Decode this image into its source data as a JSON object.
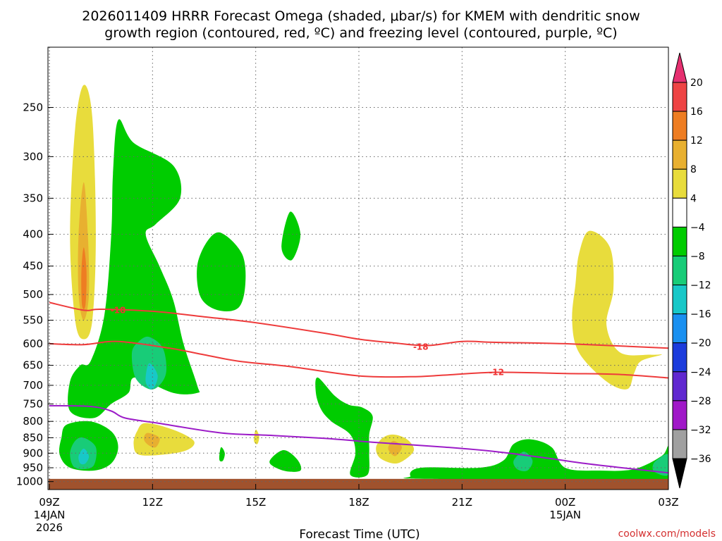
{
  "chart_data": {
    "type": "contour",
    "title_line1": "2026011409 HRRR Forecast Omega (shaded, μbar/s) for KMEM with dendritic snow",
    "title_line2": "growth region (contoured, red, ºC) and freezing level (contoured, purple, ºC)",
    "xlabel": "Forecast Time (UTC)",
    "credit": "coolwx.com/models",
    "x_hours": [
      0,
      3,
      6,
      9,
      12,
      15,
      18
    ],
    "x_tick_labels": [
      "09Z",
      "12Z",
      "15Z",
      "18Z",
      "21Z",
      "00Z",
      "03Z"
    ],
    "x_date_labels": [
      {
        "hour": 0,
        "line1": "14JAN",
        "line2": "2026"
      },
      {
        "hour": 15,
        "line1": "15JAN",
        "line2": ""
      }
    ],
    "ylim_hpa": [
      1030,
      200
    ],
    "y_ticks": [
      250,
      300,
      350,
      400,
      450,
      500,
      550,
      600,
      650,
      700,
      750,
      800,
      850,
      900,
      950,
      1000
    ],
    "y_tick_labels": [
      "250",
      "300",
      "350",
      "400",
      "450",
      "500",
      "550",
      "600",
      "650",
      "700",
      "750",
      "800",
      "850",
      "900",
      "950",
      "1000"
    ],
    "colorbar": {
      "levels": [
        20,
        16,
        12,
        8,
        4,
        -4,
        -8,
        -12,
        -16,
        -20,
        -24,
        -28,
        -32,
        -36
      ],
      "labels": [
        "20",
        "16",
        "12",
        "8",
        "4",
        "−4",
        "−8",
        "−12",
        "−16",
        "−20",
        "−24",
        "−28",
        "−32",
        "−36"
      ],
      "colors": [
        "#e63070",
        "#ee4444",
        "#ee7d22",
        "#e8b030",
        "#e8dc3c",
        "#ffffff",
        "#00cc00",
        "#18cc78",
        "#18c8c8",
        "#1a90f0",
        "#1c3cdc",
        "#6028d0",
        "#a018c8",
        "#a0a0a0",
        "#000000"
      ]
    },
    "shading": [
      {
        "color": "#e8dc3c",
        "level": "4 to 8",
        "points": [
          [
            1.0,
            230
          ],
          [
            1.25,
            260
          ],
          [
            1.35,
            400
          ],
          [
            1.25,
            550
          ],
          [
            1.0,
            590
          ],
          [
            0.75,
            550
          ],
          [
            0.6,
            400
          ],
          [
            0.75,
            270
          ]
        ]
      },
      {
        "color": "#e8b030",
        "level": "8 to 12",
        "points": [
          [
            1.0,
            330
          ],
          [
            1.12,
            400
          ],
          [
            1.15,
            500
          ],
          [
            1.0,
            550
          ],
          [
            0.85,
            500
          ],
          [
            0.85,
            400
          ]
        ]
      },
      {
        "color": "#ee7d22",
        "level": "12 to 16",
        "points": [
          [
            1.0,
            420
          ],
          [
            1.08,
            460
          ],
          [
            1.05,
            520
          ],
          [
            0.95,
            520
          ],
          [
            0.93,
            460
          ]
        ]
      },
      {
        "color": "#00cc00",
        "level": "-4 to -8",
        "points": [
          [
            2.0,
            262
          ],
          [
            2.45,
            285
          ],
          [
            3.6,
            310
          ],
          [
            3.8,
            350
          ],
          [
            3.1,
            385
          ],
          [
            2.8,
            400
          ],
          [
            3.2,
            450
          ],
          [
            3.6,
            510
          ],
          [
            3.9,
            600
          ],
          [
            4.3,
            700
          ],
          [
            4.3,
            720
          ],
          [
            3.6,
            720
          ],
          [
            2.5,
            680
          ],
          [
            2.3,
            720
          ],
          [
            1.8,
            750
          ],
          [
            1.3,
            790
          ],
          [
            0.6,
            770
          ],
          [
            0.6,
            690
          ],
          [
            0.9,
            650
          ],
          [
            1.2,
            640
          ],
          [
            1.6,
            540
          ],
          [
            1.8,
            400
          ],
          [
            1.85,
            320
          ]
        ]
      },
      {
        "color": "#00cc00",
        "level": "-4 to -8",
        "points": [
          [
            0.5,
            810
          ],
          [
            1.2,
            800
          ],
          [
            1.8,
            830
          ],
          [
            2.0,
            880
          ],
          [
            1.8,
            935
          ],
          [
            1.3,
            960
          ],
          [
            0.6,
            950
          ],
          [
            0.3,
            905
          ],
          [
            0.35,
            850
          ]
        ]
      },
      {
        "color": "#00cc00",
        "level": "-4 to -8",
        "points": [
          [
            5.0,
            398
          ],
          [
            5.6,
            430
          ],
          [
            5.7,
            480
          ],
          [
            5.5,
            525
          ],
          [
            4.9,
            530
          ],
          [
            4.4,
            505
          ],
          [
            4.3,
            450
          ],
          [
            4.6,
            410
          ]
        ]
      },
      {
        "color": "#00cc00",
        "level": "-4 to -8",
        "points": [
          [
            7.0,
            368
          ],
          [
            7.3,
            400
          ],
          [
            7.05,
            440
          ],
          [
            6.75,
            420
          ]
        ]
      },
      {
        "color": "#00cc00",
        "level": "-4 to -8",
        "points": [
          [
            7.8,
            680
          ],
          [
            8.3,
            728
          ],
          [
            8.7,
            752
          ],
          [
            9.1,
            760
          ],
          [
            9.4,
            785
          ],
          [
            9.3,
            840
          ],
          [
            9.3,
            900
          ],
          [
            9.25,
            975
          ],
          [
            8.75,
            975
          ],
          [
            8.9,
            900
          ],
          [
            8.75,
            840
          ],
          [
            8.2,
            800
          ],
          [
            7.9,
            765
          ],
          [
            7.75,
            720
          ]
        ]
      },
      {
        "color": "#00cc00",
        "level": "-4 to -8",
        "points": [
          [
            6.8,
            890
          ],
          [
            7.2,
            920
          ],
          [
            7.3,
            960
          ],
          [
            6.8,
            960
          ],
          [
            6.4,
            930
          ]
        ]
      },
      {
        "color": "#00cc00",
        "level": "-4 to -8",
        "points": [
          [
            5.0,
            880
          ],
          [
            5.1,
            900
          ],
          [
            5.05,
            925
          ],
          [
            4.95,
            925
          ],
          [
            4.95,
            900
          ]
        ]
      },
      {
        "color": "#00cc00",
        "level": "-4 to -8",
        "points": [
          [
            10.8,
            950
          ],
          [
            12.5,
            950
          ],
          [
            13.2,
            925
          ],
          [
            13.5,
            870
          ],
          [
            14.0,
            855
          ],
          [
            14.6,
            880
          ],
          [
            15.0,
            950
          ],
          [
            16.0,
            960
          ],
          [
            17.0,
            955
          ],
          [
            17.8,
            910
          ],
          [
            18.0,
            880
          ],
          [
            18.0,
            990
          ],
          [
            11.0,
            990
          ],
          [
            10.5,
            980
          ]
        ]
      },
      {
        "color": "#18cc78",
        "level": "-8 to -12",
        "points": [
          [
            2.9,
            585
          ],
          [
            3.3,
            610
          ],
          [
            3.4,
            665
          ],
          [
            3.2,
            700
          ],
          [
            2.9,
            710
          ],
          [
            2.5,
            680
          ],
          [
            2.4,
            620
          ],
          [
            2.6,
            595
          ]
        ]
      },
      {
        "color": "#18c8c8",
        "level": "-12 to -16",
        "points": [
          [
            2.9,
            645
          ],
          [
            3.15,
            675
          ],
          [
            3.0,
            710
          ],
          [
            2.8,
            690
          ]
        ]
      },
      {
        "color": "#18cc78",
        "level": "-8 to -12",
        "points": [
          [
            1.0,
            850
          ],
          [
            1.35,
            880
          ],
          [
            1.3,
            940
          ],
          [
            1.0,
            955
          ],
          [
            0.7,
            945
          ],
          [
            0.6,
            900
          ],
          [
            0.75,
            860
          ]
        ]
      },
      {
        "color": "#18c8c8",
        "level": "-12 to -16",
        "points": [
          [
            1.0,
            885
          ],
          [
            1.15,
            910
          ],
          [
            1.05,
            935
          ],
          [
            0.9,
            935
          ],
          [
            0.85,
            910
          ]
        ]
      },
      {
        "color": "#18cc78",
        "level": "-8 to -12",
        "points": [
          [
            13.8,
            895
          ],
          [
            14.05,
            925
          ],
          [
            13.9,
            960
          ],
          [
            13.6,
            955
          ],
          [
            13.5,
            925
          ]
        ]
      },
      {
        "color": "#18cc78",
        "level": "-8 to -12",
        "points": [
          [
            17.7,
            920
          ],
          [
            18.0,
            905
          ],
          [
            18.0,
            975
          ],
          [
            17.6,
            965
          ],
          [
            17.55,
            940
          ]
        ]
      },
      {
        "color": "#e8dc3c",
        "level": "4 to 8",
        "points": [
          [
            2.8,
            805
          ],
          [
            3.6,
            825
          ],
          [
            4.2,
            860
          ],
          [
            4.0,
            890
          ],
          [
            3.3,
            905
          ],
          [
            2.6,
            905
          ],
          [
            2.45,
            870
          ],
          [
            2.55,
            830
          ]
        ]
      },
      {
        "color": "#e8b030",
        "level": "8 to 12",
        "points": [
          [
            2.85,
            835
          ],
          [
            3.2,
            850
          ],
          [
            3.1,
            880
          ],
          [
            2.9,
            875
          ],
          [
            2.75,
            855
          ]
        ]
      },
      {
        "color": "#e8dc3c",
        "level": "4 to 8",
        "points": [
          [
            6.0,
            825
          ],
          [
            6.1,
            845
          ],
          [
            6.05,
            870
          ],
          [
            5.95,
            860
          ]
        ]
      },
      {
        "color": "#e8dc3c",
        "level": "4 to 8",
        "points": [
          [
            10.0,
            840
          ],
          [
            10.4,
            855
          ],
          [
            10.6,
            890
          ],
          [
            10.3,
            925
          ],
          [
            10.0,
            935
          ],
          [
            9.6,
            915
          ],
          [
            9.5,
            880
          ],
          [
            9.7,
            850
          ]
        ]
      },
      {
        "color": "#e8b030",
        "level": "8 to 12",
        "points": [
          [
            10.0,
            860
          ],
          [
            10.25,
            880
          ],
          [
            10.05,
            910
          ],
          [
            9.85,
            885
          ]
        ]
      },
      {
        "color": "#e8dc3c",
        "level": "4 to 8",
        "points": [
          [
            15.7,
            395
          ],
          [
            16.3,
            420
          ],
          [
            16.4,
            490
          ],
          [
            16.2,
            560
          ],
          [
            16.6,
            620
          ],
          [
            17.5,
            625
          ],
          [
            17.8,
            625
          ],
          [
            17.2,
            640
          ],
          [
            17.0,
            670
          ],
          [
            16.8,
            710
          ],
          [
            16.2,
            690
          ],
          [
            15.4,
            620
          ],
          [
            15.2,
            550
          ],
          [
            15.3,
            480
          ],
          [
            15.4,
            430
          ]
        ]
      }
    ],
    "red_contours": [
      {
        "level": -18,
        "label": "-18",
        "label_points": [
          [
            2.0,
            530
          ],
          [
            10.8,
            607
          ]
        ],
        "points": [
          [
            0,
            515
          ],
          [
            1.0,
            530
          ],
          [
            1.5,
            528
          ],
          [
            3.0,
            532
          ],
          [
            4.5,
            543
          ],
          [
            6.0,
            555
          ],
          [
            8.0,
            577
          ],
          [
            9.0,
            590
          ],
          [
            10.0,
            598
          ],
          [
            11.0,
            604
          ],
          [
            12.0,
            595
          ],
          [
            13.0,
            597
          ],
          [
            15.0,
            600
          ],
          [
            18,
            610
          ]
        ]
      },
      {
        "level": -12,
        "label": "-12",
        "label_points": [
          [
            13.0,
            667
          ]
        ],
        "points": [
          [
            0,
            600
          ],
          [
            1.0,
            602
          ],
          [
            2.0,
            595
          ],
          [
            3.5,
            610
          ],
          [
            4.5,
            625
          ],
          [
            5.5,
            640
          ],
          [
            7.0,
            653
          ],
          [
            9.0,
            676
          ],
          [
            10.5,
            678
          ],
          [
            11.5,
            674
          ],
          [
            13.0,
            667
          ],
          [
            15.0,
            670
          ],
          [
            16.5,
            672
          ],
          [
            18,
            681
          ]
        ]
      }
    ],
    "freezing_level": {
      "level": 0,
      "points": [
        [
          0,
          755
        ],
        [
          1.2,
          757
        ],
        [
          1.8,
          770
        ],
        [
          2.2,
          790
        ],
        [
          3.2,
          806
        ],
        [
          5.0,
          835
        ],
        [
          6.5,
          843
        ],
        [
          8.0,
          852
        ],
        [
          9.5,
          865
        ],
        [
          11.5,
          880
        ],
        [
          13.0,
          895
        ],
        [
          14.5,
          917
        ],
        [
          15.5,
          934
        ],
        [
          16.5,
          948
        ],
        [
          18,
          968
        ]
      ]
    },
    "terrain_hpa": 990,
    "terrain_color": "#a0522d"
  }
}
